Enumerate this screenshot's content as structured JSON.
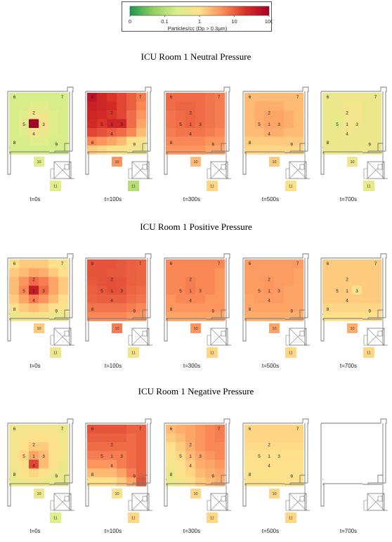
{
  "colorbar": {
    "label": "Particles/cc (Dp > 0.3μm)",
    "ticks": [
      "0",
      "0.1",
      "1",
      "10",
      "100"
    ],
    "scale": "log",
    "colors": [
      "#1a9850",
      "#91cf60",
      "#d9ef8b",
      "#fee08b",
      "#fc8d59",
      "#d73027",
      "#a50026"
    ]
  },
  "zone_labels": [
    "1",
    "2",
    "3",
    "4",
    "5",
    "6",
    "7",
    "8",
    "9",
    "10",
    "11"
  ],
  "sections": [
    {
      "title": "ICU Room 1 Neutral Pressure",
      "panels": [
        {
          "time": "t=0s",
          "grid": [
            [
              0.2,
              0.2,
              0.2,
              0.2,
              0.2,
              0.2
            ],
            [
              0.2,
              0.2,
              0.3,
              0.3,
              0.2,
              0.2
            ],
            [
              0.2,
              0.3,
              0.6,
              0.5,
              0.3,
              0.2
            ],
            [
              0.2,
              0.4,
              100,
              0.8,
              0.3,
              0.2
            ],
            [
              0.2,
              0.3,
              0.6,
              0.5,
              0.3,
              0.2
            ],
            [
              0.2,
              0.2,
              0.3,
              0.3,
              0.2,
              0.2
            ],
            [
              0.2,
              0.2,
              0.2,
              0.2,
              0.2,
              0.2
            ]
          ],
          "room10": 0.3,
          "room11": 0.3
        },
        {
          "time": "t=100s",
          "grid": [
            [
              50,
              30,
              20,
              15,
              10,
              6
            ],
            [
              35,
              30,
              25,
              15,
              10,
              5
            ],
            [
              30,
              25,
              20,
              15,
              8,
              4
            ],
            [
              25,
              20,
              30,
              30,
              8,
              3
            ],
            [
              15,
              12,
              10,
              8,
              5,
              2
            ],
            [
              5,
              4,
              3,
              2,
              1,
              0.8
            ],
            [
              1.5,
              1.2,
              1,
              0.8,
              0.6,
              0.5
            ]
          ],
          "room10": 4,
          "room11": 0.1
        },
        {
          "time": "t=300s",
          "grid": [
            [
              8,
              8,
              8,
              8,
              7,
              6
            ],
            [
              8,
              9,
              9,
              8,
              7,
              6
            ],
            [
              7,
              8,
              9,
              8,
              7,
              6
            ],
            [
              7,
              8,
              9,
              8,
              7,
              6
            ],
            [
              6,
              7,
              7,
              7,
              6,
              5
            ],
            [
              5,
              5,
              5,
              5,
              4,
              4
            ],
            [
              4,
              4,
              4,
              4,
              3,
              3
            ]
          ],
          "room10": 2,
          "room11": 1.2
        },
        {
          "time": "t=500s",
          "grid": [
            [
              2,
              2,
              2,
              2,
              2,
              2
            ],
            [
              2,
              2.5,
              2.5,
              2.5,
              2,
              2
            ],
            [
              2,
              2.5,
              3,
              3,
              2.5,
              2
            ],
            [
              2,
              2.5,
              3,
              3,
              2.5,
              2
            ],
            [
              2,
              2,
              2.5,
              2.5,
              2,
              2
            ],
            [
              1.5,
              1.5,
              1.5,
              1.5,
              1.5,
              1.5
            ],
            [
              1.2,
              1.2,
              1.2,
              1.2,
              1.2,
              1.2
            ]
          ],
          "room10": 1.5,
          "room11": 0.8
        },
        {
          "time": "t=700s",
          "grid": [
            [
              0.5,
              0.5,
              0.5,
              0.5,
              0.5,
              0.5
            ],
            [
              0.5,
              0.5,
              0.6,
              0.6,
              0.5,
              0.5
            ],
            [
              0.5,
              0.4,
              0.6,
              0.6,
              0.5,
              0.5
            ],
            [
              0.5,
              0.3,
              0.6,
              0.6,
              0.5,
              0.5
            ],
            [
              0.5,
              0.5,
              0.6,
              0.5,
              0.5,
              0.5
            ],
            [
              0.5,
              0.5,
              0.5,
              0.5,
              0.5,
              0.5
            ],
            [
              0.5,
              0.5,
              0.5,
              0.5,
              0.5,
              0.5
            ]
          ],
          "room10": 0.6,
          "room11": 0.4
        }
      ]
    },
    {
      "title": "ICU Room 1 Positive Pressure",
      "panels": [
        {
          "time": "t=0s",
          "grid": [
            [
              1,
              1.5,
              1.5,
              1.5,
              1,
              0.8
            ],
            [
              1.5,
              2,
              3,
              2.5,
              1.5,
              1
            ],
            [
              2,
              4,
              8,
              6,
              3,
              1.5
            ],
            [
              2,
              5,
              40,
              8,
              3,
              1.5
            ],
            [
              1.5,
              3,
              6,
              4,
              2,
              1
            ],
            [
              1,
              1.5,
              2,
              1.5,
              1,
              0.8
            ],
            [
              0.5,
              0.7,
              0.7,
              0.7,
              0.5,
              0.5
            ]
          ],
          "room10": 1.5,
          "room11": 0.5
        },
        {
          "time": "t=100s",
          "grid": [
            [
              12,
              12,
              12,
              11,
              10,
              9
            ],
            [
              12,
              12,
              11,
              11,
              10,
              9
            ],
            [
              11,
              12,
              13,
              12,
              10,
              9
            ],
            [
              10,
              11,
              13,
              12,
              9,
              8
            ],
            [
              9,
              10,
              10,
              10,
              8,
              7
            ],
            [
              7,
              7,
              7,
              7,
              6,
              5
            ],
            [
              5,
              5,
              5,
              5,
              4,
              4
            ]
          ],
          "room10": 6,
          "room11": 0.6
        },
        {
          "time": "t=300s",
          "grid": [
            [
              5,
              5,
              5,
              5,
              5,
              5
            ],
            [
              5,
              5,
              5,
              5,
              5,
              4
            ],
            [
              5,
              5,
              6,
              5,
              5,
              4
            ],
            [
              5,
              5,
              6,
              5,
              5,
              4
            ],
            [
              4,
              5,
              5,
              5,
              4,
              4
            ],
            [
              4,
              4,
              4,
              4,
              4,
              4
            ],
            [
              3,
              3,
              3,
              3,
              3,
              3
            ]
          ],
          "room10": 4,
          "room11": 1.2
        },
        {
          "time": "t=500s",
          "grid": [
            [
              3.5,
              3.5,
              3.5,
              3.5,
              3.5,
              3.5
            ],
            [
              3.5,
              3.5,
              3.5,
              3.5,
              3.5,
              3
            ],
            [
              3.5,
              3.5,
              4,
              3.5,
              3.5,
              3
            ],
            [
              3.5,
              3.5,
              4,
              3.5,
              3,
              3
            ],
            [
              3,
              3.5,
              3.5,
              3.5,
              3,
              3
            ],
            [
              3,
              3,
              3,
              3,
              3,
              3
            ],
            [
              2.5,
              2.5,
              2.5,
              2.5,
              2.5,
              2.5
            ]
          ],
          "room10": 3,
          "room11": 1.2
        },
        {
          "time": "t=700s",
          "grid": [
            [
              1.5,
              1.5,
              1.5,
              1.5,
              1.5,
              1.5
            ],
            [
              1.5,
              1.5,
              1.5,
              1.5,
              1.5,
              1.5
            ],
            [
              1.5,
              1.5,
              1.5,
              1.5,
              1.5,
              1.5
            ],
            [
              1.5,
              1.5,
              1.5,
              0.8,
              1.5,
              1.5
            ],
            [
              1.5,
              1.5,
              1.5,
              1.5,
              1.5,
              1.5
            ],
            [
              1.2,
              1.2,
              1.2,
              1.2,
              1.2,
              1.2
            ],
            [
              1,
              1,
              1,
              1,
              1,
              1
            ]
          ],
          "room10": 2.5,
          "room11": 1.2
        }
      ]
    },
    {
      "title": "ICU Room 1 Negative Pressure",
      "panels": [
        {
          "time": "t=0s",
          "grid": [
            [
              0.6,
              0.6,
              0.6,
              0.6,
              0.6,
              0.5
            ],
            [
              0.6,
              0.8,
              1,
              1,
              0.8,
              0.6
            ],
            [
              0.6,
              1,
              1.5,
              1.5,
              1,
              0.6
            ],
            [
              0.6,
              1.2,
              3,
              2,
              1,
              0.6
            ],
            [
              0.6,
              1,
              15,
              2,
              1,
              0.5
            ],
            [
              0.5,
              0.8,
              1.2,
              1,
              0.6,
              0.5
            ],
            [
              0.4,
              0.5,
              0.6,
              0.5,
              0.4,
              0.4
            ]
          ],
          "room10": 0.5,
          "room11": 0.3
        },
        {
          "time": "t=100s",
          "grid": [
            [
              12,
              12,
              12,
              12,
              10,
              10
            ],
            [
              10,
              10,
              10,
              10,
              8,
              10
            ],
            [
              8,
              8,
              8,
              8,
              8,
              10
            ],
            [
              6,
              6,
              6,
              6,
              8,
              10
            ],
            [
              4,
              4,
              4,
              6,
              8,
              10
            ],
            [
              2,
              2,
              2,
              3,
              6,
              10
            ],
            [
              1,
              1,
              1,
              1.5,
              3,
              12
            ]
          ],
          "room10": 0.9,
          "room11": 1.2
        },
        {
          "time": "t=300s",
          "grid": [
            [
              2,
              2.5,
              3,
              4,
              5,
              6
            ],
            [
              1.5,
              2,
              3,
              4,
              5,
              6
            ],
            [
              1,
              1.5,
              2.5,
              4,
              5,
              5
            ],
            [
              0.8,
              1.2,
              2,
              3,
              4,
              5
            ],
            [
              0.6,
              1,
              1.5,
              2.5,
              3,
              4
            ],
            [
              0.5,
              0.8,
              1.2,
              2,
              2.5,
              3
            ],
            [
              0.4,
              0.6,
              1,
              1.5,
              2,
              2.5
            ]
          ],
          "room10": 1.2,
          "room11": 1.2
        },
        {
          "time": "t=500s",
          "grid": [
            [
              1.2,
              1.2,
              1.2,
              1.2,
              1.2,
              1.2
            ],
            [
              1.2,
              1.2,
              1.2,
              1.2,
              1.2,
              1.2
            ],
            [
              1.1,
              1.1,
              1.1,
              1.1,
              1.1,
              1.1
            ],
            [
              1,
              1,
              1,
              1,
              1,
              1
            ],
            [
              1,
              1,
              1,
              1,
              1,
              1
            ],
            [
              0.9,
              0.9,
              0.9,
              0.9,
              0.9,
              0.9
            ],
            [
              0.9,
              0.9,
              0.9,
              0.9,
              0.9,
              0.9
            ]
          ],
          "room10": 1.2,
          "room11": 1.2
        },
        {
          "time": "t=700s",
          "grid": null,
          "room10": null,
          "room11": null
        }
      ]
    }
  ]
}
